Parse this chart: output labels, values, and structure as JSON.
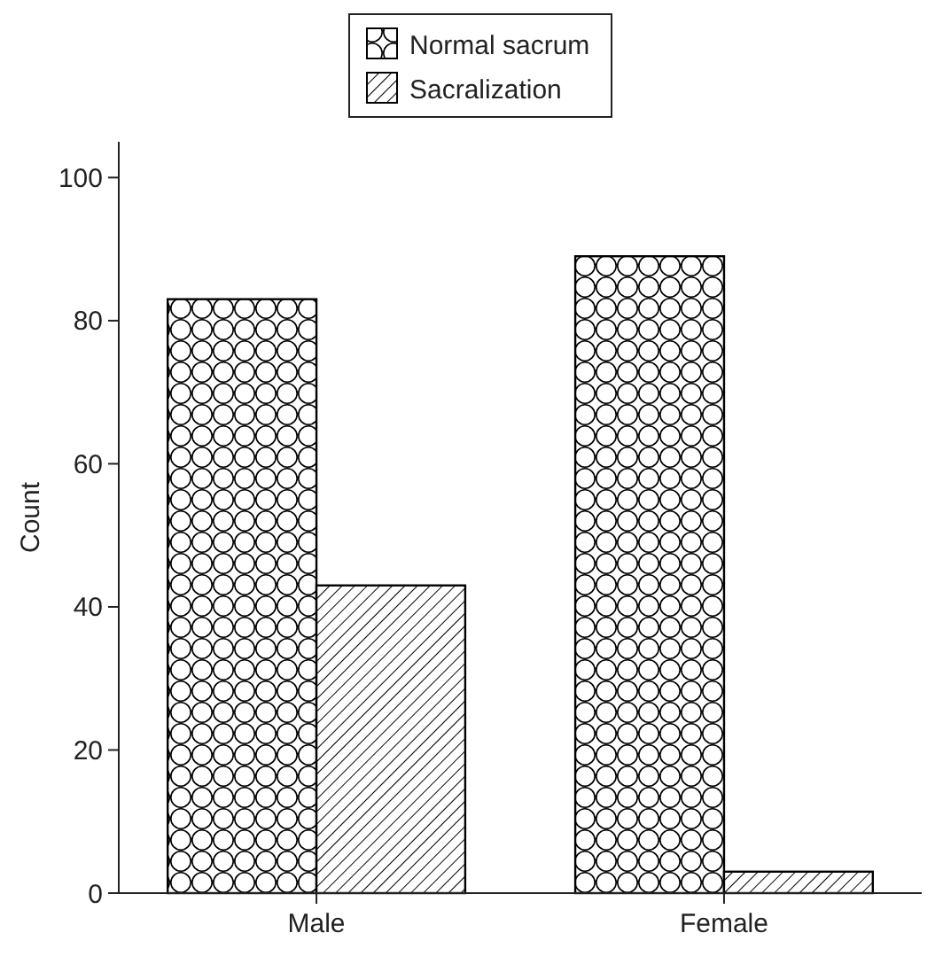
{
  "chart_data": {
    "type": "bar",
    "ylabel": "Count",
    "categories": [
      "Male",
      "Female"
    ],
    "series": [
      {
        "name": "Normal sacrum",
        "color": "#000000",
        "values": [
          83,
          89
        ]
      },
      {
        "name": "Sacralization",
        "color": "#000000",
        "values": [
          43,
          3
        ]
      }
    ],
    "ylim": [
      0,
      105
    ],
    "yticks": [
      0,
      20,
      40,
      60,
      80,
      100
    ],
    "grid": false,
    "legend": "top"
  }
}
